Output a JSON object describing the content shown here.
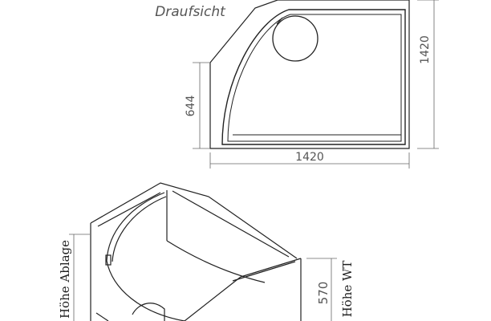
{
  "top_view": {
    "title": "Draufsicht",
    "width_label": "1420",
    "height_label": "1420",
    "side_label": "644"
  },
  "perspective_view": {
    "shelf_height_label": "Höhe Ablage",
    "tub_height_label": "Höhe WT",
    "tub_height_value": "570"
  }
}
